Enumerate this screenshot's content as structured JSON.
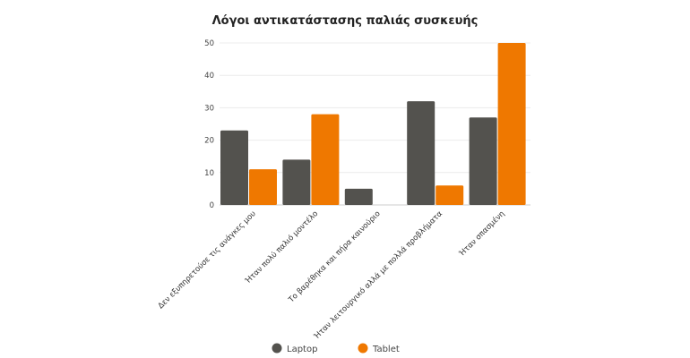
{
  "chart_data": {
    "type": "bar",
    "title": "Λόγοι αντικατάστασης παλιάς συσκευής",
    "xlabel": "",
    "ylabel": "",
    "ylim": [
      0,
      50
    ],
    "yticks": [
      "0",
      "10",
      "20",
      "30",
      "40",
      "50"
    ],
    "grid": true,
    "legend_position": "bottom",
    "categories": [
      "Δεν εξυπηρετούσε τις ανάγκες μου",
      "Ήταν πολύ παλιό μοντέλο",
      "Το βαρέθηκα και πήρα καινούριο",
      "Ήταν λειτουργικό αλλά με πολλά προβλήματα",
      "Ήταν σπασμένη"
    ],
    "series": [
      {
        "name": "Laptop",
        "color": "#53524e",
        "values": [
          23,
          14,
          5,
          32,
          27
        ]
      },
      {
        "name": "Tablet",
        "color": "#ef7800",
        "values": [
          11,
          28,
          0,
          6,
          50
        ]
      }
    ]
  }
}
